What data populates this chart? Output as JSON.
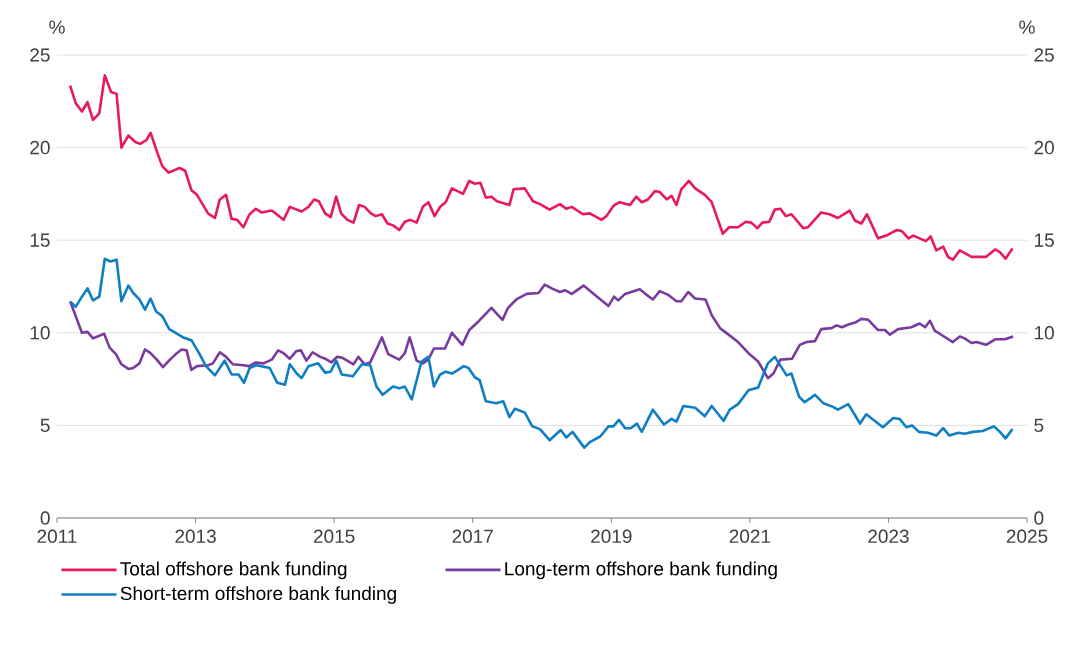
{
  "chart_data": {
    "type": "line",
    "ylabel": "%",
    "y2label": "%",
    "xlim": [
      2011,
      2025
    ],
    "xticks": [
      2011,
      2013,
      2015,
      2017,
      2019,
      2021,
      2023,
      2025
    ],
    "ylim": [
      0,
      25
    ],
    "yticks": [
      0,
      5,
      10,
      15,
      20,
      25
    ],
    "y2lim": [
      0,
      25
    ],
    "y2ticks": [
      0,
      5,
      10,
      15,
      20,
      25
    ],
    "grid": "y",
    "legend": "bottom",
    "series": [
      {
        "name": "Total offshore bank funding",
        "color": "#e8195f",
        "x": [
          2011.19,
          2011.27,
          2011.36,
          2011.44,
          2011.52,
          2011.61,
          2011.69,
          2011.78,
          2011.86,
          2011.93,
          2012.03,
          2012.13,
          2012.2,
          2012.29,
          2012.35,
          2012.45,
          2012.52,
          2012.61,
          2012.77,
          2012.85,
          2012.94,
          2013.02,
          2013.18,
          2013.28,
          2013.35,
          2013.44,
          2013.52,
          2013.6,
          2013.69,
          2013.78,
          2013.87,
          2013.95,
          2014.1,
          2014.27,
          2014.36,
          2014.53,
          2014.63,
          2014.71,
          2014.78,
          2014.87,
          2014.95,
          2015.03,
          2015.1,
          2015.19,
          2015.28,
          2015.36,
          2015.44,
          2015.53,
          2015.6,
          2015.69,
          2015.77,
          2015.85,
          2015.94,
          2016.02,
          2016.1,
          2016.19,
          2016.28,
          2016.36,
          2016.45,
          2016.53,
          2016.61,
          2016.7,
          2016.86,
          2016.95,
          2017.03,
          2017.11,
          2017.19,
          2017.27,
          2017.35,
          2017.53,
          2017.59,
          2017.75,
          2017.87,
          2017.97,
          2018.11,
          2018.26,
          2018.35,
          2018.43,
          2018.59,
          2018.69,
          2018.86,
          2018.93,
          2019.03,
          2019.12,
          2019.27,
          2019.36,
          2019.44,
          2019.53,
          2019.63,
          2019.7,
          2019.8,
          2019.87,
          2019.94,
          2020.01,
          2020.12,
          2020.21,
          2020.35,
          2020.45,
          2020.52,
          2020.61,
          2020.7,
          2020.83,
          2020.94,
          2021.02,
          2021.11,
          2021.18,
          2021.28,
          2021.36,
          2021.44,
          2021.52,
          2021.6,
          2021.77,
          2021.84,
          2022.03,
          2022.15,
          2022.27,
          2022.44,
          2022.52,
          2022.61,
          2022.69,
          2022.85,
          2022.97,
          2023.12,
          2023.19,
          2023.29,
          2023.36,
          2023.54,
          2023.61,
          2023.69,
          2023.79,
          2023.86,
          2023.93,
          2024.03,
          2024.2,
          2024.41,
          2024.54,
          2024.61,
          2024.69,
          2024.79
        ],
        "values": [
          23.35,
          22.4,
          21.95,
          22.45,
          21.5,
          21.85,
          23.9,
          23.0,
          22.9,
          20.0,
          20.65,
          20.3,
          20.2,
          20.4,
          20.8,
          19.7,
          19.0,
          18.65,
          18.9,
          18.75,
          17.7,
          17.45,
          16.45,
          16.2,
          17.2,
          17.45,
          16.15,
          16.1,
          15.7,
          16.4,
          16.7,
          16.5,
          16.6,
          16.1,
          16.8,
          16.55,
          16.8,
          17.2,
          17.1,
          16.45,
          16.25,
          17.35,
          16.45,
          16.1,
          15.95,
          16.9,
          16.8,
          16.45,
          16.3,
          16.4,
          15.9,
          15.8,
          15.55,
          16.0,
          16.1,
          15.95,
          16.8,
          17.05,
          16.3,
          16.8,
          17.05,
          17.8,
          17.5,
          18.2,
          18.05,
          18.1,
          17.3,
          17.35,
          17.1,
          16.9,
          17.75,
          17.8,
          17.1,
          16.95,
          16.65,
          16.95,
          16.7,
          16.8,
          16.4,
          16.45,
          16.1,
          16.3,
          16.85,
          17.05,
          16.9,
          17.35,
          17.05,
          17.2,
          17.65,
          17.6,
          17.2,
          17.4,
          16.9,
          17.75,
          18.2,
          17.8,
          17.45,
          17.05,
          16.3,
          15.35,
          15.7,
          15.7,
          16.0,
          15.95,
          15.65,
          15.95,
          16.0,
          16.65,
          16.7,
          16.3,
          16.4,
          15.65,
          15.7,
          16.5,
          16.4,
          16.2,
          16.6,
          16.05,
          15.9,
          16.4,
          15.1,
          15.25,
          15.55,
          15.5,
          15.1,
          15.25,
          14.95,
          15.2,
          14.45,
          14.65,
          14.1,
          13.95,
          14.45,
          14.1,
          14.1,
          14.5,
          14.35,
          14.0,
          14.55
        ]
      },
      {
        "name": "Long-term offshore bank funding",
        "color": "#7a3b9e",
        "x": [
          2011.19,
          2011.27,
          2011.36,
          2011.44,
          2011.52,
          2011.68,
          2011.76,
          2011.85,
          2011.93,
          2012.03,
          2012.1,
          2012.19,
          2012.27,
          2012.35,
          2012.44,
          2012.53,
          2012.63,
          2012.73,
          2012.8,
          2012.87,
          2012.94,
          2013.02,
          2013.18,
          2013.25,
          2013.35,
          2013.44,
          2013.54,
          2013.69,
          2013.77,
          2013.87,
          2013.98,
          2014.1,
          2014.19,
          2014.27,
          2014.36,
          2014.45,
          2014.52,
          2014.6,
          2014.69,
          2014.8,
          2014.87,
          2014.96,
          2015.04,
          2015.12,
          2015.28,
          2015.35,
          2015.44,
          2015.52,
          2015.69,
          2015.78,
          2015.94,
          2016.02,
          2016.09,
          2016.19,
          2016.28,
          2016.36,
          2016.44,
          2016.6,
          2016.7,
          2016.85,
          2016.95,
          2017.08,
          2017.27,
          2017.43,
          2017.51,
          2017.63,
          2017.78,
          2017.95,
          2018.04,
          2018.14,
          2018.26,
          2018.33,
          2018.43,
          2018.6,
          2018.76,
          2018.96,
          2019.04,
          2019.1,
          2019.2,
          2019.41,
          2019.51,
          2019.6,
          2019.7,
          2019.82,
          2019.94,
          2020.01,
          2020.11,
          2020.21,
          2020.36,
          2020.45,
          2020.57,
          2020.64,
          2020.83,
          2020.98,
          2021.12,
          2021.26,
          2021.34,
          2021.44,
          2021.61,
          2021.72,
          2021.82,
          2021.94,
          2022.03,
          2022.18,
          2022.25,
          2022.33,
          2022.42,
          2022.52,
          2022.61,
          2022.71,
          2022.85,
          2022.95,
          2023.02,
          2023.14,
          2023.33,
          2023.45,
          2023.53,
          2023.6,
          2023.67,
          2023.74,
          2023.93,
          2024.03,
          2024.1,
          2024.2,
          2024.27,
          2024.41,
          2024.54,
          2024.68,
          2024.8
        ],
        "values": [
          11.7,
          10.9,
          10.0,
          10.05,
          9.7,
          9.95,
          9.2,
          8.85,
          8.3,
          8.05,
          8.1,
          8.35,
          9.1,
          8.9,
          8.55,
          8.15,
          8.55,
          8.9,
          9.1,
          9.05,
          8.0,
          8.2,
          8.25,
          8.35,
          8.95,
          8.7,
          8.3,
          8.25,
          8.2,
          8.4,
          8.35,
          8.55,
          9.05,
          8.9,
          8.6,
          9.0,
          9.05,
          8.5,
          8.95,
          8.7,
          8.6,
          8.4,
          8.7,
          8.65,
          8.3,
          8.7,
          8.3,
          8.4,
          9.75,
          8.85,
          8.55,
          8.9,
          9.75,
          8.5,
          8.35,
          8.55,
          9.15,
          9.15,
          10.0,
          9.35,
          10.15,
          10.6,
          11.35,
          10.7,
          11.35,
          11.8,
          12.1,
          12.15,
          12.6,
          12.4,
          12.2,
          12.3,
          12.1,
          12.55,
          12.05,
          11.45,
          11.95,
          11.75,
          12.1,
          12.35,
          12.05,
          11.8,
          12.25,
          12.05,
          11.7,
          11.7,
          12.2,
          11.85,
          11.8,
          10.95,
          10.25,
          10.05,
          9.5,
          8.9,
          8.45,
          7.55,
          7.8,
          8.55,
          8.6,
          9.35,
          9.5,
          9.55,
          10.2,
          10.25,
          10.4,
          10.3,
          10.45,
          10.55,
          10.75,
          10.7,
          10.15,
          10.15,
          9.9,
          10.2,
          10.3,
          10.5,
          10.3,
          10.65,
          10.1,
          9.95,
          9.5,
          9.8,
          9.7,
          9.45,
          9.5,
          9.35,
          9.65,
          9.65,
          9.8
        ]
      },
      {
        "name": "Short-term offshore bank funding",
        "color": "#0f7fc4",
        "x": [
          2011.2,
          2011.27,
          2011.36,
          2011.44,
          2011.52,
          2011.61,
          2011.69,
          2011.77,
          2011.86,
          2011.93,
          2012.03,
          2012.1,
          2012.19,
          2012.27,
          2012.35,
          2012.43,
          2012.52,
          2012.62,
          2012.73,
          2012.82,
          2012.94,
          2013.05,
          2013.15,
          2013.28,
          2013.42,
          2013.52,
          2013.62,
          2013.7,
          2013.78,
          2013.88,
          2014.07,
          2014.18,
          2014.29,
          2014.36,
          2014.46,
          2014.53,
          2014.63,
          2014.77,
          2014.87,
          2014.95,
          2015.03,
          2015.11,
          2015.27,
          2015.4,
          2015.52,
          2015.61,
          2015.7,
          2015.85,
          2015.94,
          2016.02,
          2016.12,
          2016.26,
          2016.36,
          2016.44,
          2016.53,
          2016.61,
          2016.7,
          2016.79,
          2016.87,
          2016.94,
          2017.03,
          2017.1,
          2017.19,
          2017.34,
          2017.44,
          2017.53,
          2017.61,
          2017.75,
          2017.86,
          2017.97,
          2018.11,
          2018.27,
          2018.35,
          2018.44,
          2018.61,
          2018.69,
          2018.84,
          2018.96,
          2019.03,
          2019.11,
          2019.2,
          2019.28,
          2019.37,
          2019.44,
          2019.6,
          2019.76,
          2019.87,
          2019.94,
          2020.04,
          2020.21,
          2020.35,
          2020.45,
          2020.62,
          2020.71,
          2020.83,
          2020.98,
          2021.12,
          2021.26,
          2021.36,
          2021.53,
          2021.6,
          2021.71,
          2021.79,
          2021.94,
          2022.06,
          2022.2,
          2022.27,
          2022.42,
          2022.59,
          2022.68,
          2022.92,
          2023.07,
          2023.16,
          2023.26,
          2023.34,
          2023.44,
          2023.57,
          2023.69,
          2023.79,
          2023.88,
          2024.01,
          2024.1,
          2024.22,
          2024.36,
          2024.52,
          2024.61,
          2024.69,
          2024.79
        ],
        "values": [
          11.65,
          11.4,
          11.95,
          12.4,
          11.75,
          11.95,
          14.0,
          13.85,
          13.95,
          11.7,
          12.55,
          12.15,
          11.8,
          11.25,
          11.85,
          11.15,
          10.9,
          10.2,
          9.95,
          9.75,
          9.6,
          8.9,
          8.2,
          7.7,
          8.5,
          7.75,
          7.75,
          7.3,
          8.1,
          8.25,
          8.1,
          7.3,
          7.2,
          8.3,
          7.8,
          7.55,
          8.2,
          8.35,
          7.85,
          7.9,
          8.5,
          7.75,
          7.65,
          8.3,
          8.25,
          7.1,
          6.65,
          7.1,
          7.0,
          7.1,
          6.4,
          8.45,
          8.7,
          7.1,
          7.75,
          7.9,
          7.8,
          8.0,
          8.2,
          8.1,
          7.6,
          7.45,
          6.3,
          6.2,
          6.3,
          5.45,
          5.9,
          5.7,
          4.95,
          4.8,
          4.2,
          4.75,
          4.35,
          4.65,
          3.8,
          4.1,
          4.4,
          4.95,
          4.95,
          5.3,
          4.85,
          4.85,
          5.1,
          4.65,
          5.85,
          5.05,
          5.35,
          5.2,
          6.05,
          5.95,
          5.5,
          6.05,
          5.25,
          5.85,
          6.15,
          6.9,
          7.05,
          8.35,
          8.7,
          7.7,
          7.8,
          6.55,
          6.25,
          6.65,
          6.2,
          6.0,
          5.85,
          6.15,
          5.1,
          5.6,
          4.9,
          5.4,
          5.35,
          4.9,
          5.0,
          4.65,
          4.6,
          4.45,
          4.85,
          4.45,
          4.6,
          4.55,
          4.65,
          4.7,
          4.95,
          4.65,
          4.3,
          4.8
        ]
      }
    ]
  }
}
